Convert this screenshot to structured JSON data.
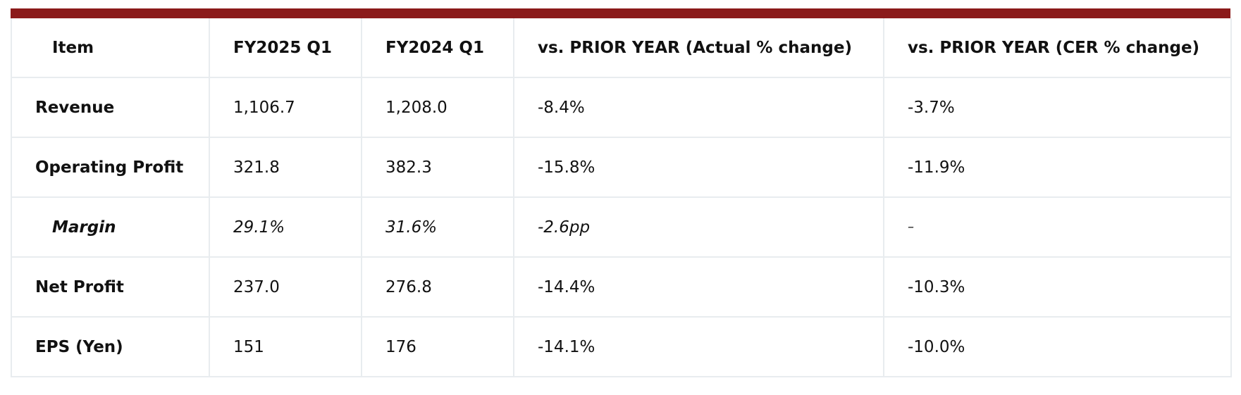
{
  "accent_color": "#8b1a1a",
  "table": {
    "headers": [
      "Item",
      "FY2025 Q1",
      "FY2024 Q1",
      "vs. PRIOR YEAR (Actual % change)",
      "vs. PRIOR YEAR (CER % change)"
    ],
    "rows": [
      {
        "item": "Revenue",
        "fy2025_q1": "1,106.7",
        "fy2024_q1": "1,208.0",
        "actual_change": "-8.4%",
        "cer_change": "-3.7%"
      },
      {
        "item": "Operating Profit",
        "fy2025_q1": "321.8",
        "fy2024_q1": "382.3",
        "actual_change": "-15.8%",
        "cer_change": "-11.9%"
      },
      {
        "item": "Margin",
        "fy2025_q1": "29.1%",
        "fy2024_q1": "31.6%",
        "actual_change": "-2.6pp",
        "cer_change": "–"
      },
      {
        "item": "Net Profit",
        "fy2025_q1": "237.0",
        "fy2024_q1": "276.8",
        "actual_change": "-14.4%",
        "cer_change": "-10.3%"
      },
      {
        "item": "EPS (Yen)",
        "fy2025_q1": "151",
        "fy2024_q1": "176",
        "actual_change": "-14.1%",
        "cer_change": "-10.0%"
      }
    ]
  }
}
